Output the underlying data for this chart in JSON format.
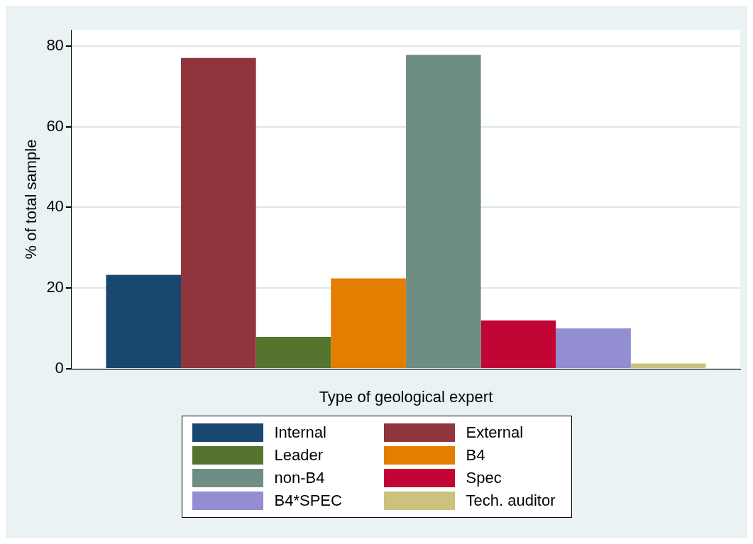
{
  "chart_data": {
    "type": "bar",
    "xlabel": "Type of geological expert",
    "ylabel": "% of total sample",
    "categories": [
      null
    ],
    "series": [
      {
        "name": "Internal",
        "color": "#1a476f",
        "values": [
          23.3
        ]
      },
      {
        "name": "External",
        "color": "#90353b",
        "values": [
          77
        ]
      },
      {
        "name": "Leader",
        "color": "#55752f",
        "values": [
          7.9
        ]
      },
      {
        "name": "B4",
        "color": "#e37e00",
        "values": [
          22.4
        ]
      },
      {
        "name": "non-B4",
        "color": "#6e8e84",
        "values": [
          77.8
        ]
      },
      {
        "name": "Spec",
        "color": "#c10534",
        "values": [
          12
        ]
      },
      {
        "name": "B4*SPEC",
        "color": "#938dd2",
        "values": [
          10
        ]
      },
      {
        "name": "Tech. auditor",
        "color": "#cac27e",
        "values": [
          1.3
        ]
      }
    ],
    "ylim": [
      0,
      84
    ],
    "yticks": [
      0,
      20,
      40,
      60,
      80
    ],
    "grid": "y",
    "legend": "bottom"
  }
}
